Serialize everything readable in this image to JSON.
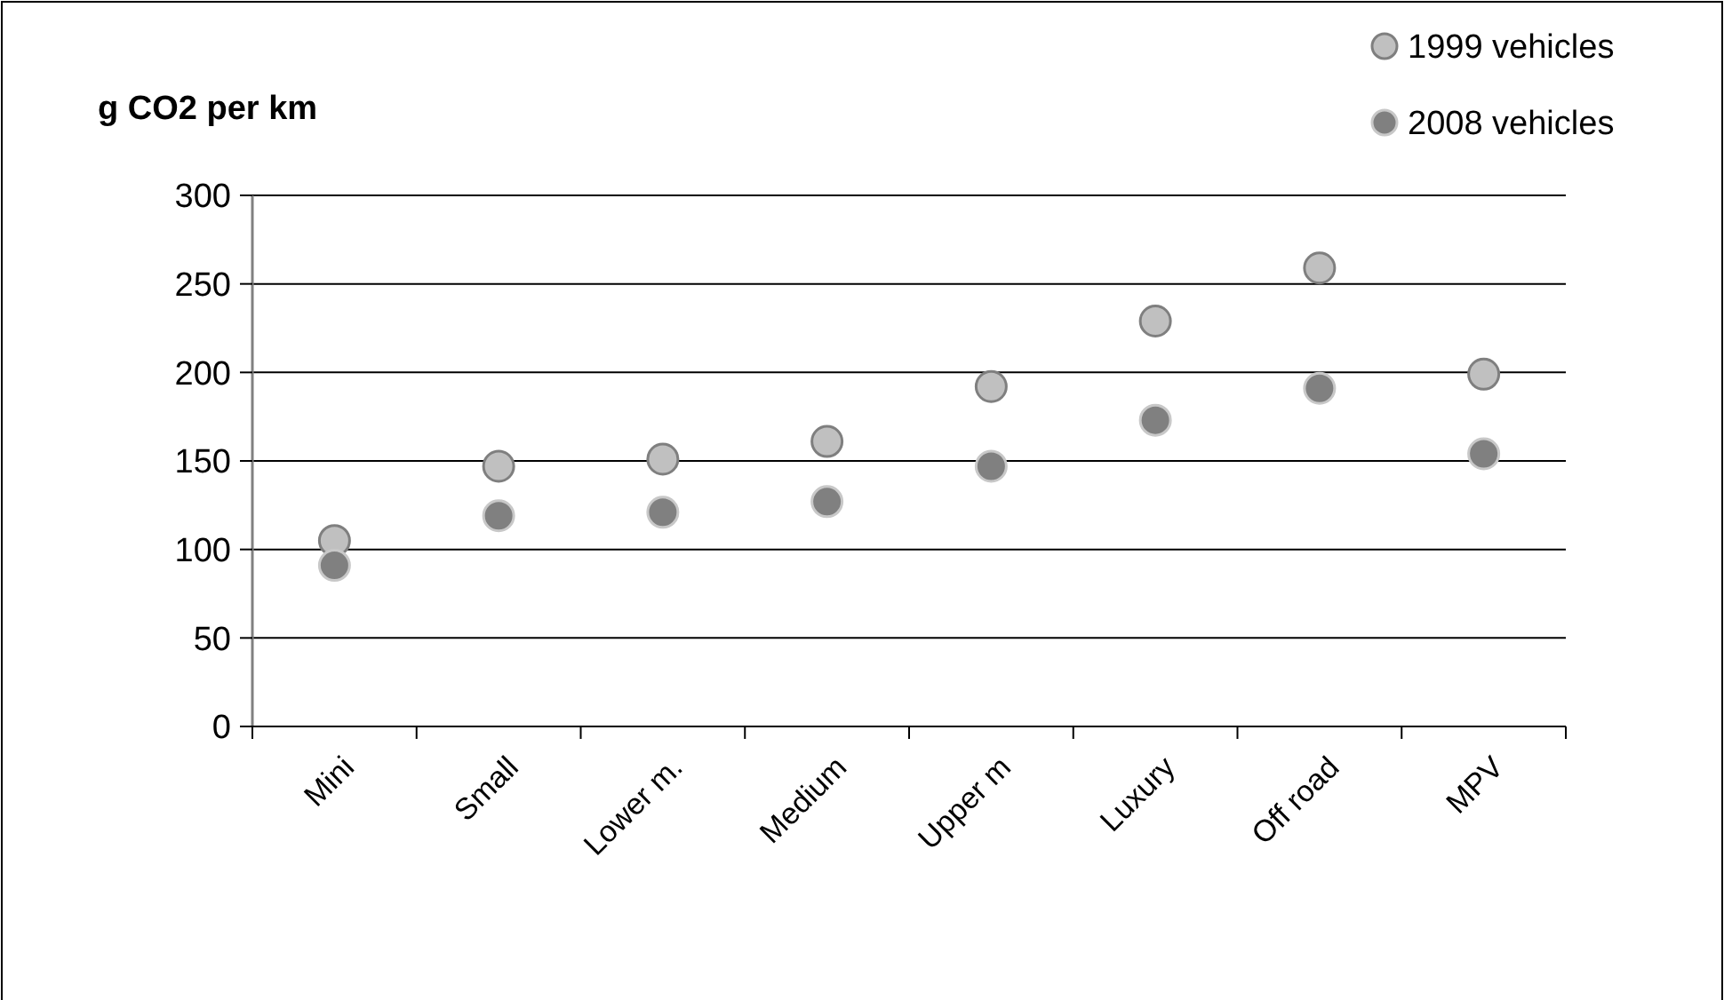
{
  "chart_data": {
    "type": "scatter",
    "title": "g CO2 per km",
    "categories": [
      "Mini",
      "Small",
      "Lower m.",
      "Medium",
      "Upper m",
      "Luxury",
      "Off road",
      "MPV"
    ],
    "series": [
      {
        "name": "1999 vehicles",
        "color": "#c0c0c0",
        "values": [
          105,
          147,
          151,
          161,
          192,
          229,
          259,
          199
        ]
      },
      {
        "name": "2008 vehicles",
        "color": "#808080",
        "values": [
          91,
          119,
          121,
          127,
          147,
          173,
          191,
          154
        ]
      }
    ],
    "ylim": [
      0,
      300
    ],
    "yticks": [
      0,
      50,
      100,
      150,
      200,
      250,
      300
    ],
    "grid": "y",
    "legend": "top right",
    "marker": "circle"
  }
}
